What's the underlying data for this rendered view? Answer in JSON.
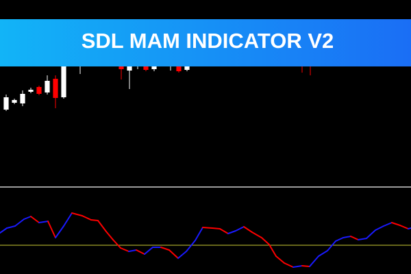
{
  "banner": {
    "title": "SDL MAM INDICATOR V2"
  },
  "chart_data": [
    {
      "type": "candlestick",
      "x": [
        0,
        1,
        2,
        3,
        4,
        5,
        6,
        7,
        9,
        14,
        15,
        16,
        17,
        18,
        20,
        21,
        22,
        36,
        37
      ],
      "open": [
        240,
        250,
        249,
        266,
        273,
        265,
        285,
        258,
        320,
        330,
        297,
        320,
        330,
        299,
        320,
        330,
        298,
        330,
        330
      ],
      "high": [
        262,
        256,
        268,
        272,
        275,
        290,
        290,
        310,
        330,
        335,
        335,
        330,
        335,
        335,
        330,
        335,
        335,
        335,
        335
      ],
      "low": [
        238,
        248,
        245,
        264,
        261,
        262,
        242,
        256,
        292,
        284,
        270,
        299,
        296,
        296,
        297,
        294,
        296,
        294,
        290
      ],
      "close": [
        258,
        254,
        263,
        269,
        263,
        282,
        257,
        303,
        325,
        299,
        330,
        325,
        298,
        330,
        325,
        296,
        330,
        320,
        320
      ],
      "up_color": "#ffffff",
      "down_color": "#ff0000",
      "xlim": [
        -0.75,
        49.25
      ],
      "ylim": [
        130,
        400
      ]
    },
    {
      "type": "line",
      "x": [
        0,
        10,
        22,
        35,
        45,
        57,
        70,
        81,
        93,
        105,
        120,
        133,
        143,
        155,
        165,
        176,
        188,
        199,
        211,
        223,
        235,
        247,
        260,
        272,
        285,
        296,
        310,
        321,
        333,
        344,
        356,
        368,
        382,
        393,
        403,
        415,
        428,
        441,
        452,
        465,
        478,
        490,
        501,
        512,
        523,
        535,
        548,
        560,
        572,
        584,
        596,
        600
      ],
      "values": [
        60,
        67,
        70,
        80,
        84,
        75,
        77,
        53,
        70,
        89,
        85,
        79,
        78,
        62,
        50,
        38,
        33,
        35,
        29,
        39,
        39,
        35,
        23,
        33,
        49,
        68,
        67,
        66,
        59,
        63,
        69,
        61,
        53,
        43,
        26,
        16,
        10,
        12,
        11,
        26,
        34,
        48,
        53,
        55,
        50,
        52,
        64,
        70,
        75,
        71,
        66,
        67
      ],
      "up_color": "#1a1aff",
      "down_color": "#ff0000",
      "level": 42,
      "level_color": "#cccc33",
      "xlim": [
        0,
        600
      ],
      "ylim": [
        0,
        130
      ]
    }
  ]
}
